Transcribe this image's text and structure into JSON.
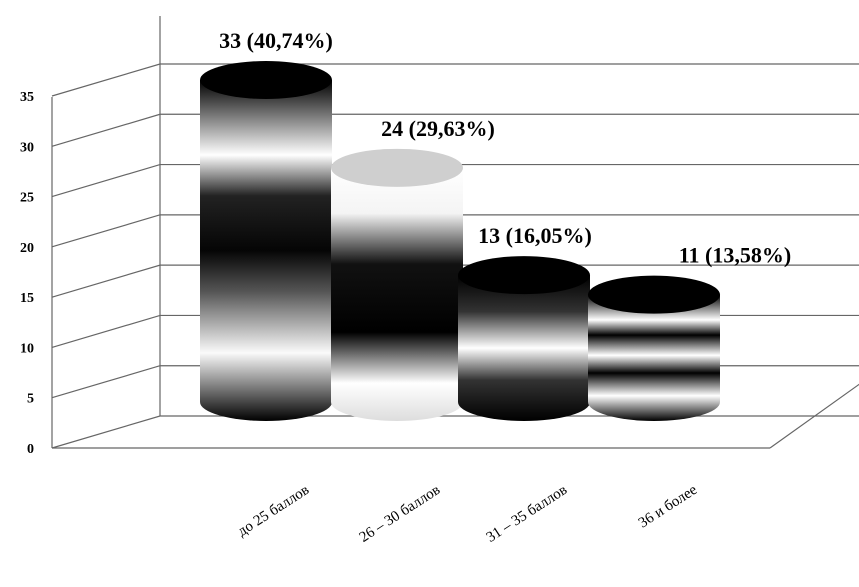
{
  "chart_data": {
    "type": "bar",
    "style": "3d-cylinder",
    "categories": [
      "до 25 баллов",
      "26 – 30 баллов",
      "31 – 35 баллов",
      "36 и более"
    ],
    "values": [
      33,
      24,
      13,
      11
    ],
    "data_labels": [
      "33 (40,74%)",
      "24 (29,63%)",
      "13 (16,05%)",
      "11 (13,58%)"
    ],
    "y_ticks": [
      "0",
      "5",
      "10",
      "15",
      "20",
      "25",
      "30",
      "35"
    ],
    "ylim": [
      0,
      35
    ],
    "grid": true,
    "title": "",
    "xlabel": "",
    "ylabel": ""
  }
}
